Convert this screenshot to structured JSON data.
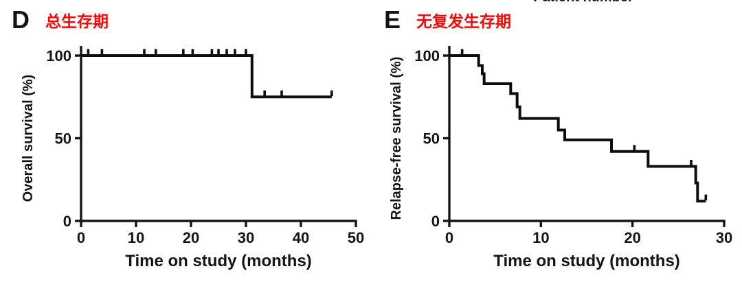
{
  "figure": {
    "background": "#ffffff",
    "clipped_top_label": "Patient number"
  },
  "colors": {
    "ink": "#151515",
    "title_red": "#f80707",
    "curve_black": "#0d0d0d"
  },
  "chart_data": [
    {
      "type": "line",
      "subtype": "kaplan_meier_step",
      "panel_letter": "D",
      "title": "总生存期",
      "xlabel": "Time on study (months)",
      "ylabel": "Overall survival (%)",
      "xlim": [
        0,
        50
      ],
      "ylim": [
        0,
        100
      ],
      "xticks": [
        0,
        10,
        20,
        30,
        40,
        50
      ],
      "yticks": [
        0,
        50,
        100
      ],
      "grid": false,
      "legend": null,
      "series": [
        {
          "name": "Overall survival",
          "steps": [
            [
              0,
              100
            ],
            [
              31.1,
              75
            ]
          ],
          "end_time": 45.6,
          "censor_marks": [
            [
              1.3,
              100
            ],
            [
              3.8,
              100
            ],
            [
              11.5,
              100
            ],
            [
              13.6,
              100
            ],
            [
              18.6,
              100
            ],
            [
              20.3,
              100
            ],
            [
              23.8,
              100
            ],
            [
              25.0,
              100
            ],
            [
              26.5,
              100
            ],
            [
              28.0,
              100
            ],
            [
              30.0,
              100
            ],
            [
              33.4,
              75
            ],
            [
              36.5,
              75
            ],
            [
              45.6,
              75
            ]
          ]
        }
      ]
    },
    {
      "type": "line",
      "subtype": "kaplan_meier_step",
      "panel_letter": "E",
      "title": "无复发生存期",
      "xlabel": "Time on study (months)",
      "ylabel": "Relapse-free survival (%)",
      "xlim": [
        0,
        30
      ],
      "ylim": [
        0,
        100
      ],
      "xticks": [
        0,
        10,
        20,
        30
      ],
      "yticks": [
        0,
        50,
        100
      ],
      "grid": false,
      "legend": null,
      "series": [
        {
          "name": "Relapse-free survival",
          "steps": [
            [
              0,
              100
            ],
            [
              3.2,
              94
            ],
            [
              3.6,
              89
            ],
            [
              3.8,
              83
            ],
            [
              6.7,
              77
            ],
            [
              7.4,
              69
            ],
            [
              7.7,
              62
            ],
            [
              11.9,
              55
            ],
            [
              12.6,
              49
            ],
            [
              17.7,
              42
            ],
            [
              21.7,
              33
            ],
            [
              26.9,
              23
            ],
            [
              27.1,
              12
            ]
          ],
          "end_time": 28.0,
          "censor_marks": [
            [
              1.4,
              100
            ],
            [
              20.2,
              42
            ],
            [
              26.4,
              33
            ],
            [
              28.0,
              12
            ]
          ]
        }
      ]
    }
  ]
}
